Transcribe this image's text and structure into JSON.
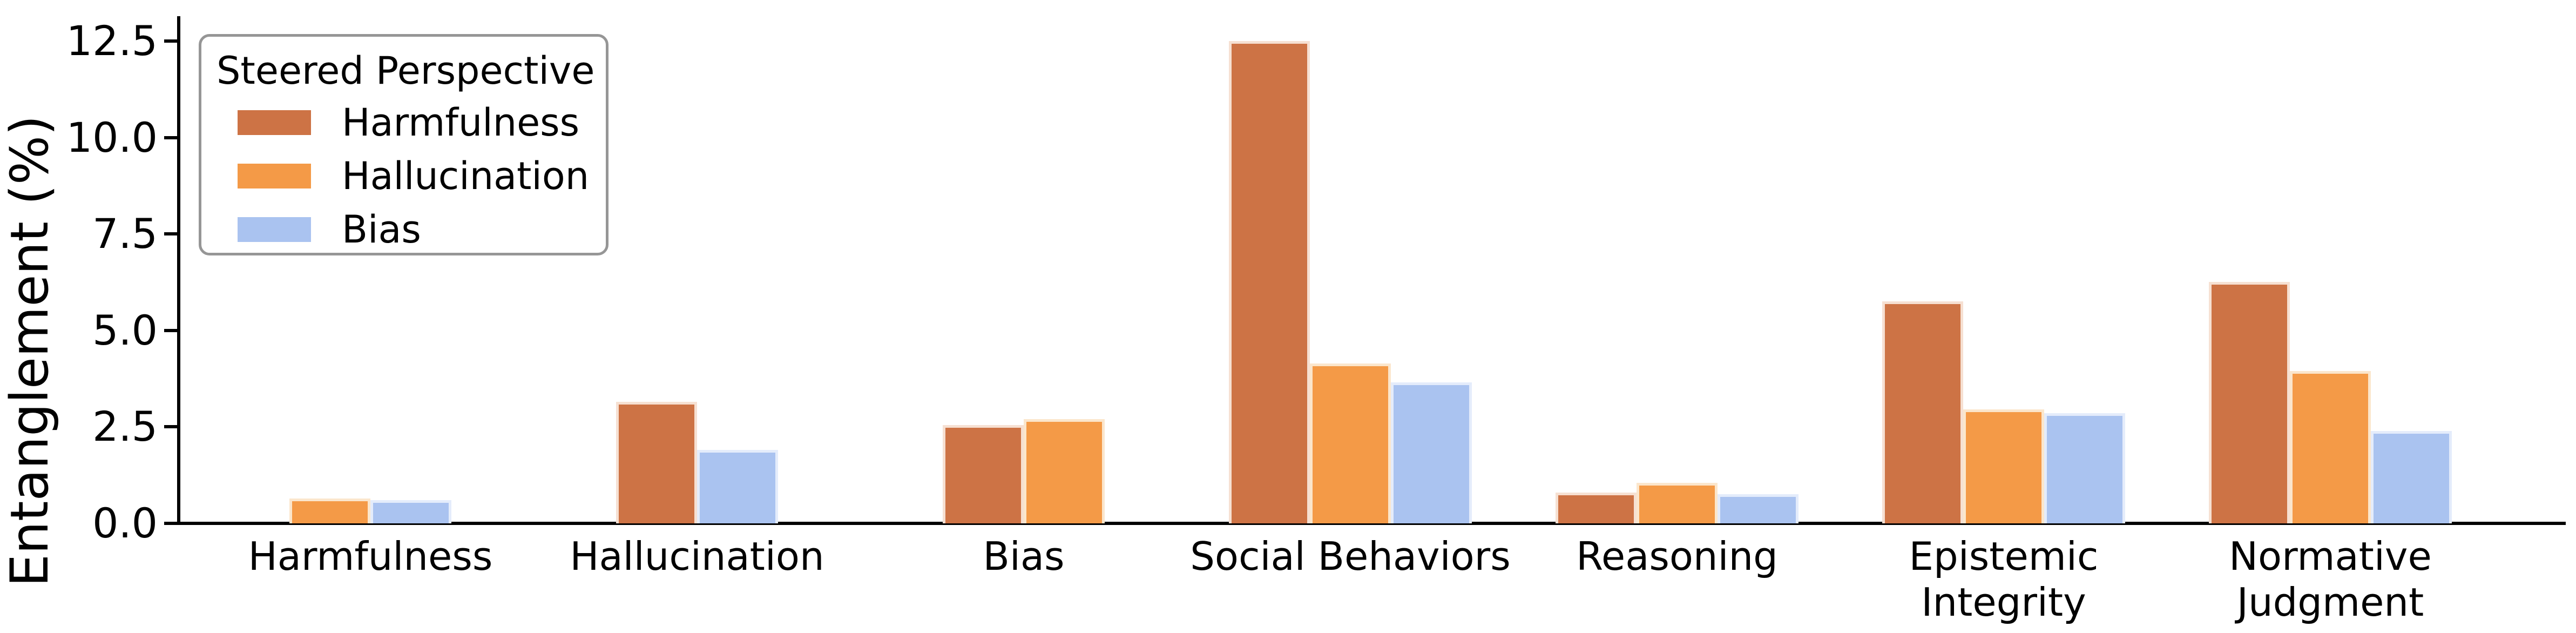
{
  "chart_data": {
    "type": "bar",
    "title": "",
    "xlabel": "",
    "ylabel": "Entanglement (%)",
    "ylim": [
      0,
      13.1
    ],
    "grid": false,
    "background_color": "#ffffff",
    "axis_color": "#000000",
    "yticks": [
      0.0,
      2.5,
      5.0,
      7.5,
      10.0,
      12.5
    ],
    "ytick_labels": [
      "0.0",
      "2.5",
      "5.0",
      "7.5",
      "10.0",
      "12.5"
    ],
    "categories": [
      "Harmfulness",
      "Hallucination",
      "Bias",
      "Social Behaviors",
      "Reasoning",
      "Epistemic Integrity",
      "Normative Judgment"
    ],
    "xtick_display": [
      "Harmfulness",
      "Hallucination",
      "Bias",
      "Social Behaviors",
      "Reasoning",
      "Epistemic\nIntegrity",
      "Normative\nJudgment"
    ],
    "legend": {
      "title": "Steered Perspective",
      "position": "upper left"
    },
    "series": [
      {
        "name": "Harmfulness",
        "color": "#cd7345",
        "edge_color": "#f6e0d2",
        "values": [
          null,
          3.15,
          2.55,
          12.5,
          0.8,
          5.75,
          6.25
        ]
      },
      {
        "name": "Hallucination",
        "color": "#f49a47",
        "edge_color": "#fbe6cc",
        "values": [
          0.65,
          null,
          2.7,
          4.15,
          1.05,
          2.95,
          3.95
        ]
      },
      {
        "name": "Bias",
        "color": "#aac3f0",
        "edge_color": "#e4ecfb",
        "values": [
          0.6,
          1.9,
          null,
          3.65,
          0.75,
          2.85,
          2.4
        ]
      }
    ]
  }
}
